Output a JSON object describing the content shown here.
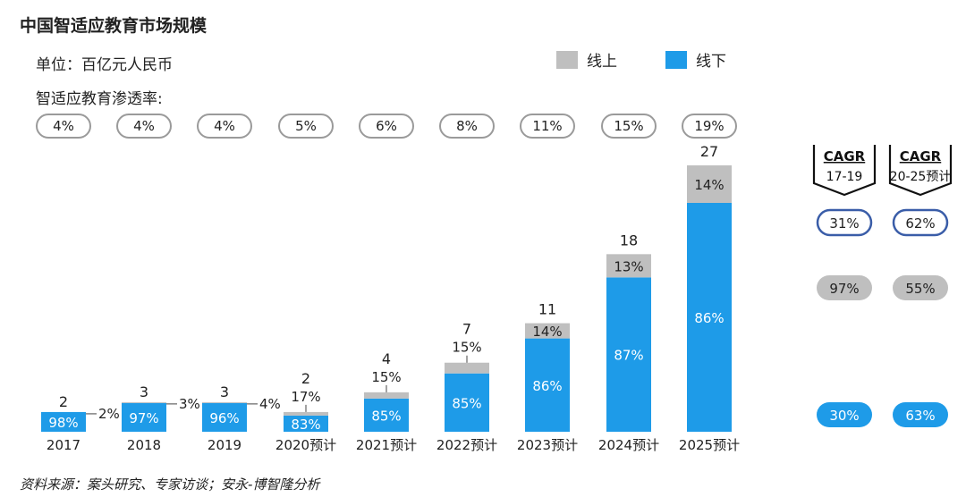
{
  "title": "中国智适应教育市场规模",
  "unit_label": "单位：百亿元人民币",
  "penetration_label": "智适应教育渗透率:",
  "legend": {
    "online": {
      "label": "线上",
      "color": "#bfbfbf"
    },
    "offline": {
      "label": "线下",
      "color": "#1e9be8"
    }
  },
  "penetration": [
    "4%",
    "4%",
    "4%",
    "5%",
    "6%",
    "8%",
    "11%",
    "15%",
    "19%"
  ],
  "cagr": {
    "headers": [
      {
        "title": "CAGR",
        "period": "17-19"
      },
      {
        "title": "CAGR",
        "period": "20-25预计"
      }
    ],
    "total": [
      "31%",
      "62%"
    ],
    "online": [
      "97%",
      "55%"
    ],
    "offline": [
      "30%",
      "63%"
    ]
  },
  "source": "资料来源：案头研究、专家访谈；安永-博智隆分析",
  "chart_data": {
    "type": "bar",
    "stacked": true,
    "categories": [
      "2017",
      "2018",
      "2019",
      "2020预计",
      "2021预计",
      "2022预计",
      "2023预计",
      "2024预计",
      "2025预计"
    ],
    "totals": [
      2,
      3,
      3,
      2,
      4,
      7,
      11,
      18,
      27
    ],
    "series": [
      {
        "name": "线下",
        "color": "#1e9be8",
        "share_labels": [
          "98%",
          "97%",
          "96%",
          "83%",
          "85%",
          "85%",
          "86%",
          "87%",
          "86%"
        ],
        "share": [
          98,
          97,
          96,
          83,
          85,
          85,
          86,
          87,
          86
        ]
      },
      {
        "name": "线上",
        "color": "#bfbfbf",
        "share_labels": [
          "2%",
          "3%",
          "4%",
          "17%",
          "15%",
          "15%",
          "14%",
          "13%",
          "14%"
        ],
        "share": [
          2,
          3,
          4,
          17,
          15,
          15,
          14,
          13,
          14
        ]
      }
    ],
    "ylim": [
      0,
      27
    ]
  }
}
